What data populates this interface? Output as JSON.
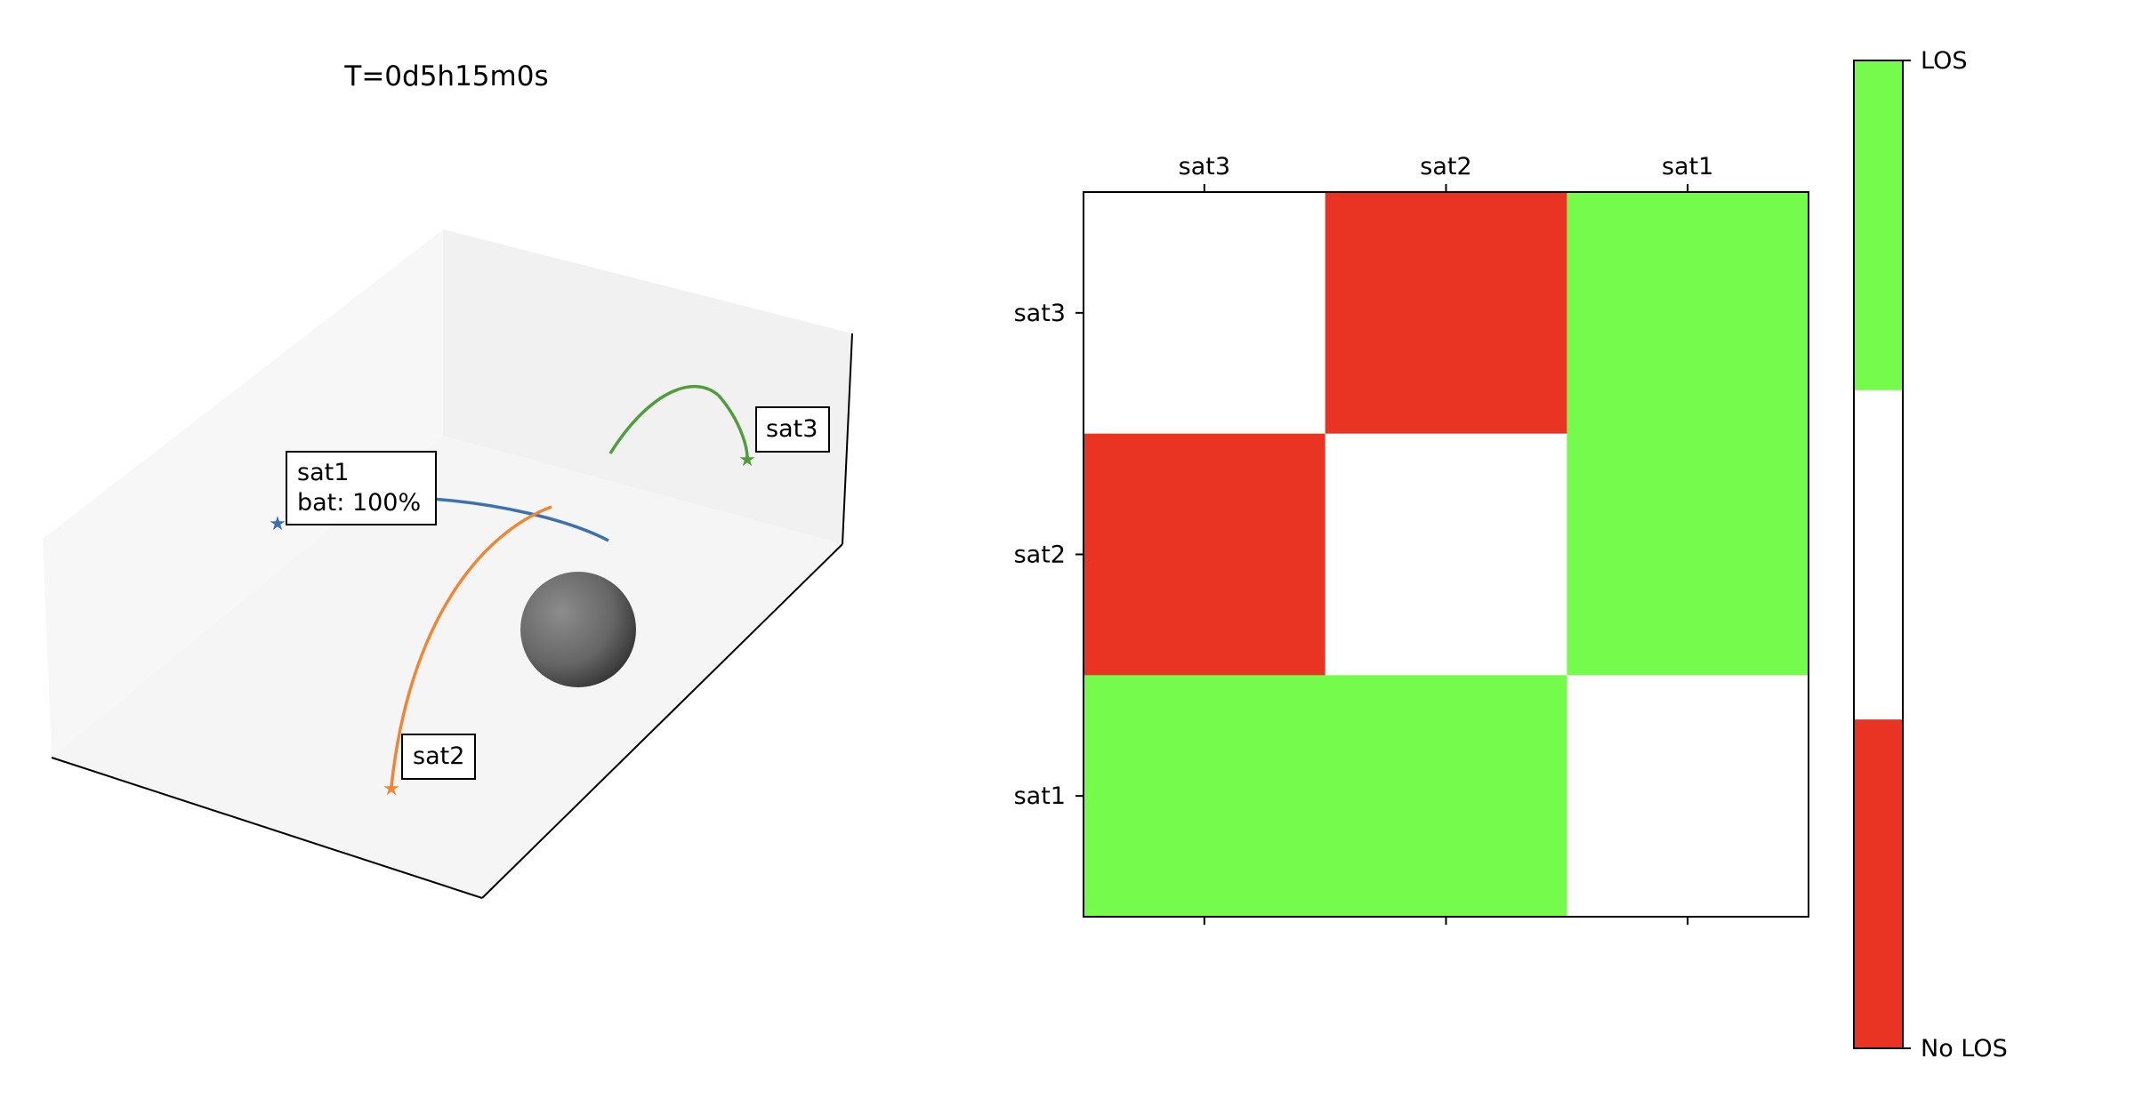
{
  "title": "T=0d5h15m0s",
  "scene": {
    "body": "central-sphere",
    "satellites": [
      {
        "name": "sat1",
        "color": "#3a72b0",
        "label_lines": [
          "sat1",
          "bat: 100%"
        ]
      },
      {
        "name": "sat2",
        "color": "#ef8633",
        "label_lines": [
          "sat2"
        ]
      },
      {
        "name": "sat3",
        "color": "#4f9d3c",
        "label_lines": [
          "sat3"
        ]
      }
    ]
  },
  "chart_data": {
    "type": "heatmap",
    "x_categories": [
      "sat3",
      "sat2",
      "sat1"
    ],
    "y_categories": [
      "sat3",
      "sat2",
      "sat1"
    ],
    "values": [
      [
        null,
        0,
        1
      ],
      [
        0,
        null,
        1
      ],
      [
        1,
        1,
        null
      ]
    ],
    "colorbar": {
      "ticks": [
        "No LOS",
        "LOS"
      ],
      "segments": [
        {
          "value": 0,
          "color": "#e93323"
        },
        {
          "value": null,
          "color": "#ffffff"
        },
        {
          "value": 1,
          "color": "#75fb4c"
        }
      ]
    },
    "colors": {
      "los": "#75fb4c",
      "no_los": "#e93323",
      "self": "#ffffff"
    }
  }
}
